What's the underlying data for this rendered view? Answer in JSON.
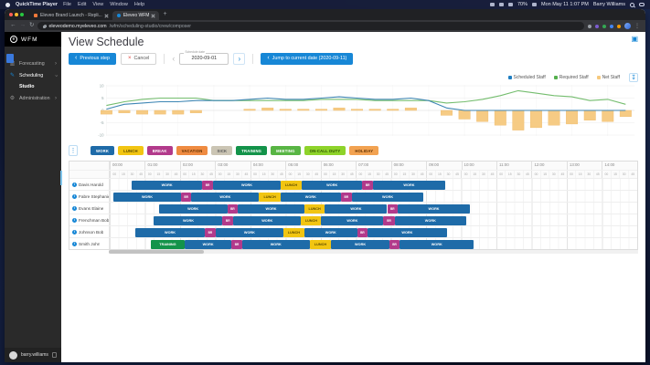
{
  "menubar": {
    "app_name": "QuickTime Player",
    "menus": [
      "File",
      "Edit",
      "View",
      "Window",
      "Help"
    ],
    "battery": "70%",
    "clock": "Mon May 11  1:07 PM",
    "user": "Barry Williams"
  },
  "browser": {
    "tabs": [
      {
        "label": "Eleveo Brand Launch - Repli...",
        "active": false
      },
      {
        "label": "Eleveo WFM",
        "active": true
      }
    ],
    "url_domain": "eleveodemo.myeleveo.com",
    "url_path": "/wfm/scheduling-studio/crew/composer",
    "new_tab": "+"
  },
  "sidebar": {
    "logo_mark": "e",
    "logo_text": "WFM",
    "items": [
      {
        "label": "Forecasting",
        "icon": "chart",
        "chevron": "right",
        "active": false
      },
      {
        "label": "Scheduling",
        "icon": "pencil",
        "chevron": "down",
        "active": true
      },
      {
        "label": "Studio",
        "sub": true
      },
      {
        "label": "Administration",
        "icon": "gear",
        "chevron": "right",
        "active": false
      }
    ],
    "user": "barry.williams"
  },
  "page": {
    "title": "View Schedule",
    "buttons": {
      "previous": "Previous step",
      "cancel": "Cancel",
      "jump": "Jump to current date (2020-09-11)"
    },
    "date_field": {
      "label": "Schedule date",
      "value": "2020-09-01"
    }
  },
  "legend": [
    {
      "label": "Scheduled Staff",
      "color": "#1f7ec2"
    },
    {
      "label": "Required Staff",
      "color": "#55b04e"
    },
    {
      "label": "Net Staff",
      "color": "#f6c97e"
    }
  ],
  "activity_types": [
    {
      "label": "WORK",
      "color": "#1e6ba8",
      "text_color": "#ffffff"
    },
    {
      "label": "LUNCH",
      "color": "#f2c512",
      "text_color": "#5b4a00"
    },
    {
      "label": "BREAK",
      "color": "#b23a8b",
      "text_color": "#ffffff"
    },
    {
      "label": "VACATION",
      "color": "#ef8b41",
      "text_color": "#5f3000"
    },
    {
      "label": "SICK",
      "color": "#cbc5b4",
      "text_color": "#555555"
    },
    {
      "label": "TRAINING",
      "color": "#13934a",
      "text_color": "#ffffff"
    },
    {
      "label": "MEETING",
      "color": "#58b544",
      "text_color": "#ffffff"
    },
    {
      "label": "ON-CALL DUTY",
      "color": "#8ed32a",
      "text_color": "#2f5200"
    },
    {
      "label": "HOLIDAY",
      "color": "#f2a251",
      "text_color": "#5f3000"
    }
  ],
  "schedule": {
    "hours": [
      "00:00",
      "01:00",
      "02:00",
      "03:00",
      "04:00",
      "05:00",
      "06:00",
      "07:00",
      "08:00",
      "09:00",
      "10:00",
      "11:00",
      "12:00",
      "13:00",
      "14:00"
    ],
    "quarter_labels": [
      "00",
      "15",
      "30",
      "45"
    ],
    "employees": [
      {
        "name": "Davis Harold",
        "segments": [
          {
            "start": 4.2,
            "end": 17.5,
            "type": "WORK"
          },
          {
            "start": 17.5,
            "end": 19.6,
            "type": "BR"
          },
          {
            "start": 19.6,
            "end": 32.4,
            "type": "WORK"
          },
          {
            "start": 32.4,
            "end": 36.4,
            "type": "LUNCH"
          },
          {
            "start": 36.4,
            "end": 47.9,
            "type": "WORK"
          },
          {
            "start": 47.9,
            "end": 49.9,
            "type": "BR"
          },
          {
            "start": 49.9,
            "end": 63.6,
            "type": "WORK"
          }
        ]
      },
      {
        "name": "Fabre Stephanie",
        "segments": [
          {
            "start": 0.7,
            "end": 13.5,
            "type": "WORK"
          },
          {
            "start": 13.5,
            "end": 15.5,
            "type": "BR"
          },
          {
            "start": 15.5,
            "end": 28.3,
            "type": "WORK"
          },
          {
            "start": 28.3,
            "end": 32.4,
            "type": "LUNCH"
          },
          {
            "start": 32.4,
            "end": 43.8,
            "type": "WORK"
          },
          {
            "start": 43.8,
            "end": 45.9,
            "type": "BR"
          },
          {
            "start": 45.9,
            "end": 59.5,
            "type": "WORK"
          }
        ]
      },
      {
        "name": "Evans Elaine",
        "segments": [
          {
            "start": 9.3,
            "end": 22.3,
            "type": "WORK"
          },
          {
            "start": 22.3,
            "end": 24.3,
            "type": "BR"
          },
          {
            "start": 24.3,
            "end": 36.9,
            "type": "WORK"
          },
          {
            "start": 36.9,
            "end": 40.8,
            "type": "LUNCH"
          },
          {
            "start": 40.8,
            "end": 52.6,
            "type": "WORK"
          },
          {
            "start": 52.6,
            "end": 54.6,
            "type": "BR"
          },
          {
            "start": 54.6,
            "end": 68.3,
            "type": "WORK"
          }
        ]
      },
      {
        "name": "Frenchman Bob",
        "segments": [
          {
            "start": 8.4,
            "end": 21.4,
            "type": "WORK"
          },
          {
            "start": 21.4,
            "end": 23.4,
            "type": "BR"
          },
          {
            "start": 23.4,
            "end": 36.3,
            "type": "WORK"
          },
          {
            "start": 36.3,
            "end": 40.1,
            "type": "LUNCH"
          },
          {
            "start": 40.1,
            "end": 51.9,
            "type": "WORK"
          },
          {
            "start": 51.9,
            "end": 54.0,
            "type": "BR"
          },
          {
            "start": 54.0,
            "end": 67.6,
            "type": "WORK"
          }
        ]
      },
      {
        "name": "Johnson Bob",
        "segments": [
          {
            "start": 4.9,
            "end": 18.0,
            "type": "WORK"
          },
          {
            "start": 18.0,
            "end": 20.1,
            "type": "BR"
          },
          {
            "start": 20.1,
            "end": 32.9,
            "type": "WORK"
          },
          {
            "start": 32.9,
            "end": 36.9,
            "type": "LUNCH"
          },
          {
            "start": 36.9,
            "end": 46.9,
            "type": "WORK"
          },
          {
            "start": 46.9,
            "end": 48.9,
            "type": "BR"
          },
          {
            "start": 48.9,
            "end": 63.9,
            "type": "WORK"
          }
        ]
      },
      {
        "name": "Smith John",
        "segments": [
          {
            "start": 7.8,
            "end": 14.2,
            "type": "TRAINING"
          },
          {
            "start": 14.2,
            "end": 23.1,
            "type": "WORK"
          },
          {
            "start": 23.1,
            "end": 25.1,
            "type": "BR"
          },
          {
            "start": 25.1,
            "end": 37.9,
            "type": "WORK"
          },
          {
            "start": 37.9,
            "end": 42.0,
            "type": "LUNCH"
          },
          {
            "start": 42.0,
            "end": 53.0,
            "type": "WORK"
          },
          {
            "start": 53.0,
            "end": 55.0,
            "type": "BR"
          },
          {
            "start": 55.0,
            "end": 69.0,
            "type": "WORK"
          }
        ]
      }
    ]
  },
  "chart_data": {
    "type": "mixed-line-bar",
    "title": "",
    "ylim": [
      -10,
      10
    ],
    "yticks": [
      10,
      5,
      0,
      -5,
      -10
    ],
    "x_hours": [
      0,
      0.5,
      1,
      1.5,
      2,
      2.5,
      3,
      3.5,
      4,
      4.5,
      5,
      5.5,
      6,
      6.5,
      7,
      7.5,
      8,
      8.5,
      9,
      9.5,
      10,
      10.5,
      11,
      11.5,
      12,
      12.5,
      13,
      13.5,
      14,
      14.5
    ],
    "legend_position": "top-right",
    "series": [
      {
        "name": "Scheduled Staff",
        "type": "line",
        "color": "#3e86b4",
        "values": [
          0.5,
          2.5,
          3,
          3.5,
          3.5,
          4,
          4,
          4,
          4.5,
          5,
          4.5,
          4.5,
          5,
          5.5,
          5,
          4.5,
          4.5,
          5,
          4,
          1,
          0,
          0,
          0,
          0,
          0,
          0,
          0,
          0,
          0,
          0
        ]
      },
      {
        "name": "Required Staff",
        "type": "line",
        "color": "#74bd6e",
        "values": [
          2,
          3.5,
          4.5,
          5,
          5,
          5,
          4,
          4,
          4,
          4,
          4,
          4,
          4.5,
          4.5,
          4.5,
          4,
          4,
          4,
          4,
          3,
          3.5,
          4.5,
          6,
          8,
          7,
          6,
          5.5,
          4,
          4.5,
          2.5
        ]
      },
      {
        "name": "Net Staff",
        "type": "bar",
        "color": "#f6c97e",
        "values": [
          -1.5,
          -1,
          -1.5,
          -1.5,
          -1.5,
          -1,
          0,
          0,
          0.5,
          1,
          0.5,
          0.5,
          0.5,
          1,
          0.5,
          0.5,
          0.5,
          1,
          0,
          -2,
          -3.5,
          -4.5,
          -6,
          -8,
          -7,
          -6,
          -5.5,
          -4,
          -4.5,
          -2.5
        ]
      }
    ]
  }
}
